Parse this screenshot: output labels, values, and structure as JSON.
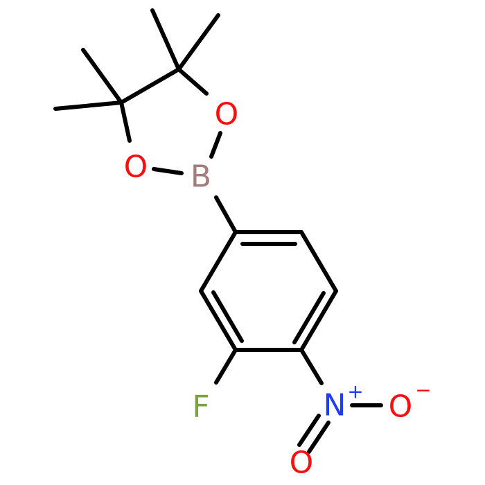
{
  "atoms": [
    {
      "label": "O"
    },
    {
      "label": "O"
    },
    {
      "label": "B"
    },
    {
      "label": "F"
    },
    {
      "label": "N",
      "charge": "+"
    },
    {
      "label": "O",
      "charge": "−"
    },
    {
      "label": "O"
    }
  ]
}
